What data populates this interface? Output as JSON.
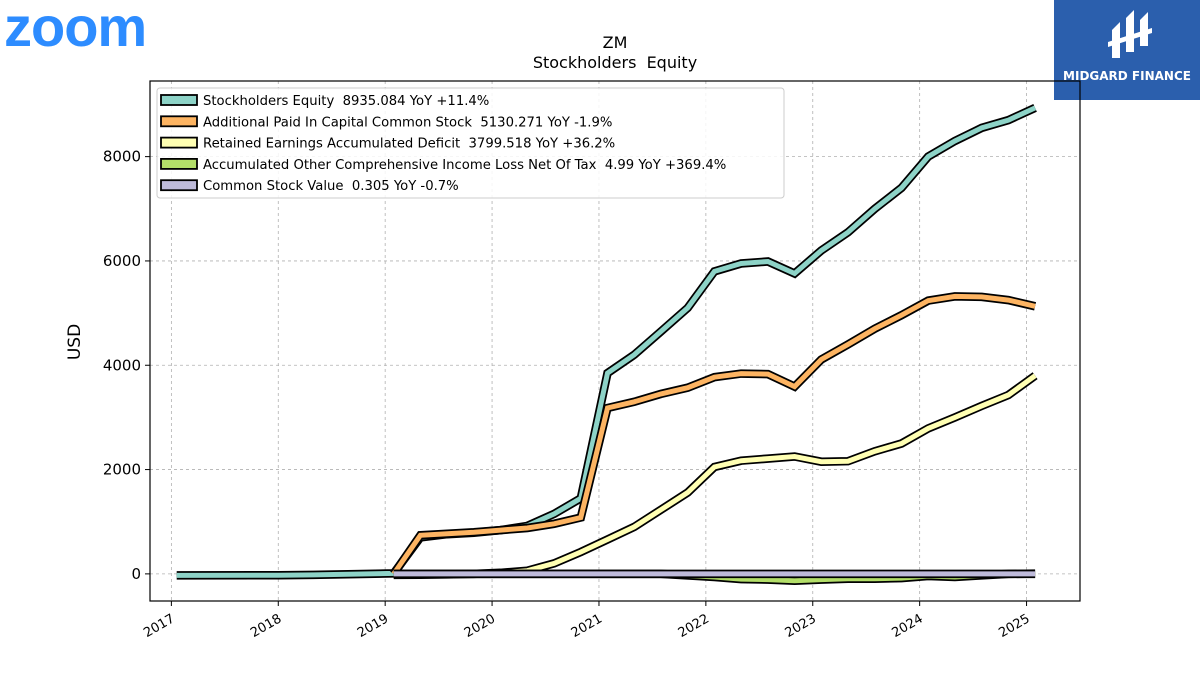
{
  "header": {
    "logo_text": "zoom",
    "logo_color": "#2d8cff",
    "brand_name": "MIDGARD FINANCE",
    "brand_bg_color": "#2b5fad",
    "brand_icon": "midgard-finance-logo-icon"
  },
  "chart_data": {
    "type": "line",
    "title": "ZM",
    "subtitle": "Stockholders  Equity",
    "ylabel": "USD",
    "xlabel": "",
    "xlim": [
      2016.8,
      2025.5
    ],
    "ylim": [
      -520,
      9450
    ],
    "x_ticks": [
      2017,
      2018,
      2019,
      2020,
      2021,
      2022,
      2023,
      2024,
      2025
    ],
    "x_tick_labels": [
      "2017",
      "2018",
      "2019",
      "2020",
      "2021",
      "2022",
      "2023",
      "2024",
      "2025"
    ],
    "y_ticks": [
      0,
      2000,
      4000,
      6000,
      8000
    ],
    "y_tick_labels": [
      "0",
      "2000",
      "4000",
      "6000",
      "8000"
    ],
    "grid": true,
    "legend_position": "top-left",
    "series": [
      {
        "name": "Stockholders Equity  8935.084 YoY +11.4%",
        "color": "#8dd3c7",
        "x": [
          2017.05,
          2018.0,
          2018.33,
          2019.08,
          2019.33,
          2019.58,
          2019.83,
          2020.08,
          2020.33,
          2020.58,
          2020.83,
          2021.08,
          2021.33,
          2021.58,
          2021.83,
          2022.08,
          2022.33,
          2022.58,
          2022.83,
          2023.08,
          2023.33,
          2023.58,
          2023.83,
          2024.08,
          2024.33,
          2024.58,
          2024.83,
          2025.08
        ],
        "y": [
          -30,
          -25,
          -20,
          10,
          700,
          760,
          790,
          840,
          920,
          1150,
          1450,
          3850,
          4200,
          4650,
          5100,
          5800,
          5950,
          5990,
          5760,
          6200,
          6550,
          7000,
          7400,
          8000,
          8300,
          8550,
          8700,
          8935
        ]
      },
      {
        "name": "Additional Paid In Capital Common Stock  5130.271 YoY -1.9%",
        "color": "#fdb462",
        "x": [
          2019.08,
          2019.33,
          2019.58,
          2019.83,
          2020.08,
          2020.33,
          2020.58,
          2020.83,
          2021.08,
          2021.33,
          2021.58,
          2021.83,
          2022.08,
          2022.33,
          2022.58,
          2022.83,
          2023.08,
          2023.33,
          2023.58,
          2023.83,
          2024.08,
          2024.33,
          2024.58,
          2024.83,
          2025.08
        ],
        "y": [
          0,
          740,
          770,
          800,
          840,
          880,
          960,
          1080,
          3180,
          3300,
          3450,
          3570,
          3770,
          3840,
          3830,
          3590,
          4110,
          4400,
          4700,
          4960,
          5240,
          5320,
          5310,
          5250,
          5130
        ]
      },
      {
        "name": "Retained Earnings Accumulated Deficit  3799.518 YoY +36.2%",
        "color": "#ffffb3",
        "x": [
          2019.08,
          2019.33,
          2019.58,
          2019.83,
          2020.08,
          2020.33,
          2020.58,
          2020.83,
          2021.08,
          2021.33,
          2021.58,
          2021.83,
          2022.08,
          2022.33,
          2022.58,
          2022.83,
          2023.08,
          2023.33,
          2023.58,
          2023.83,
          2024.08,
          2024.33,
          2024.58,
          2024.83,
          2025.08
        ],
        "y": [
          -20,
          -15,
          -10,
          0,
          20,
          60,
          200,
          420,
          660,
          900,
          1230,
          1560,
          2050,
          2170,
          2210,
          2250,
          2150,
          2160,
          2350,
          2500,
          2790,
          3000,
          3220,
          3430,
          3800
        ]
      },
      {
        "name": "Accumulated Other Comprehensive Income Loss Net Of Tax  4.99 YoY +369.4%",
        "color": "#b3de69",
        "x": [
          2019.08,
          2019.58,
          2020.08,
          2020.58,
          2021.08,
          2021.58,
          2022.08,
          2022.33,
          2022.58,
          2022.83,
          2023.08,
          2023.33,
          2023.58,
          2023.83,
          2024.08,
          2024.33,
          2024.58,
          2024.83,
          2025.08
        ],
        "y": [
          0,
          0,
          0,
          0,
          0,
          0,
          -60,
          -100,
          -110,
          -130,
          -110,
          -95,
          -95,
          -80,
          -40,
          -60,
          -30,
          0,
          5
        ]
      },
      {
        "name": "Common Stock Value  0.305 YoY -0.7%",
        "color": "#bebada",
        "x": [
          2019.08,
          2025.08
        ],
        "y": [
          0.3,
          0.305
        ]
      }
    ]
  }
}
